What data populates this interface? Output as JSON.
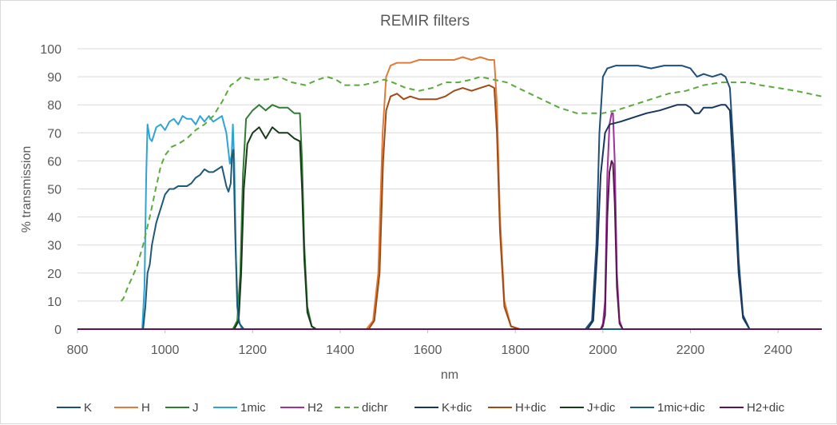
{
  "chart_data": {
    "type": "line",
    "title": "REMIR filters",
    "xlabel": "nm",
    "ylabel": "% transmission",
    "xlim": [
      800,
      2500
    ],
    "ylim": [
      0,
      100
    ],
    "xticks": [
      800,
      1000,
      1200,
      1400,
      1600,
      1800,
      2000,
      2200,
      2400
    ],
    "yticks": [
      0,
      10,
      20,
      30,
      40,
      50,
      60,
      70,
      80,
      90,
      100
    ],
    "grid": "horizontal",
    "legend": "bottom",
    "series": [
      {
        "name": "K",
        "color": "#1f4e79",
        "dash": false,
        "points": [
          [
            800,
            0
          ],
          [
            1960,
            0
          ],
          [
            1975,
            3
          ],
          [
            1985,
            30
          ],
          [
            1992,
            70
          ],
          [
            2000,
            90
          ],
          [
            2010,
            93
          ],
          [
            2030,
            94
          ],
          [
            2080,
            94
          ],
          [
            2110,
            93
          ],
          [
            2140,
            94
          ],
          [
            2180,
            94
          ],
          [
            2200,
            93
          ],
          [
            2215,
            90
          ],
          [
            2230,
            91
          ],
          [
            2250,
            90
          ],
          [
            2270,
            91
          ],
          [
            2280,
            90
          ],
          [
            2290,
            86
          ],
          [
            2300,
            60
          ],
          [
            2310,
            25
          ],
          [
            2320,
            5
          ],
          [
            2335,
            0
          ],
          [
            2500,
            0
          ]
        ]
      },
      {
        "name": "H",
        "color": "#e07b39",
        "dash": false,
        "points": [
          [
            800,
            0
          ],
          [
            1460,
            0
          ],
          [
            1475,
            3
          ],
          [
            1487,
            20
          ],
          [
            1497,
            70
          ],
          [
            1505,
            90
          ],
          [
            1515,
            94
          ],
          [
            1530,
            95
          ],
          [
            1560,
            95
          ],
          [
            1580,
            96
          ],
          [
            1600,
            96
          ],
          [
            1620,
            96
          ],
          [
            1640,
            96
          ],
          [
            1660,
            96
          ],
          [
            1680,
            97
          ],
          [
            1700,
            96
          ],
          [
            1720,
            97
          ],
          [
            1740,
            96
          ],
          [
            1752,
            96
          ],
          [
            1758,
            80
          ],
          [
            1765,
            40
          ],
          [
            1775,
            10
          ],
          [
            1790,
            1
          ],
          [
            1810,
            0
          ],
          [
            2500,
            0
          ]
        ]
      },
      {
        "name": "J",
        "color": "#2e7d32",
        "dash": false,
        "points": [
          [
            800,
            0
          ],
          [
            1155,
            0
          ],
          [
            1165,
            3
          ],
          [
            1172,
            20
          ],
          [
            1178,
            55
          ],
          [
            1185,
            75
          ],
          [
            1200,
            78
          ],
          [
            1215,
            80
          ],
          [
            1230,
            78
          ],
          [
            1245,
            80
          ],
          [
            1260,
            79
          ],
          [
            1280,
            79
          ],
          [
            1295,
            77
          ],
          [
            1308,
            77
          ],
          [
            1313,
            60
          ],
          [
            1318,
            30
          ],
          [
            1325,
            8
          ],
          [
            1335,
            1
          ],
          [
            1345,
            0
          ],
          [
            2500,
            0
          ]
        ]
      },
      {
        "name": "1mic",
        "color": "#2ea3d6",
        "dash": false,
        "points": [
          [
            800,
            0
          ],
          [
            948,
            0
          ],
          [
            953,
            15
          ],
          [
            957,
            55
          ],
          [
            960,
            73
          ],
          [
            965,
            68
          ],
          [
            970,
            67
          ],
          [
            980,
            72
          ],
          [
            990,
            73
          ],
          [
            1000,
            71
          ],
          [
            1010,
            74
          ],
          [
            1020,
            75
          ],
          [
            1030,
            73
          ],
          [
            1040,
            76
          ],
          [
            1050,
            75
          ],
          [
            1060,
            75
          ],
          [
            1070,
            73
          ],
          [
            1080,
            76
          ],
          [
            1090,
            74
          ],
          [
            1100,
            76
          ],
          [
            1110,
            74
          ],
          [
            1120,
            75
          ],
          [
            1130,
            76
          ],
          [
            1140,
            70
          ],
          [
            1148,
            59
          ],
          [
            1152,
            62
          ],
          [
            1155,
            73
          ],
          [
            1158,
            60
          ],
          [
            1162,
            25
          ],
          [
            1167,
            4
          ],
          [
            1175,
            0
          ],
          [
            2500,
            0
          ]
        ]
      },
      {
        "name": "H2",
        "color": "#a0309a",
        "dash": false,
        "points": [
          [
            800,
            0
          ],
          [
            1995,
            0
          ],
          [
            2000,
            2
          ],
          [
            2005,
            10
          ],
          [
            2010,
            55
          ],
          [
            2015,
            73
          ],
          [
            2020,
            77
          ],
          [
            2023,
            77
          ],
          [
            2027,
            60
          ],
          [
            2032,
            20
          ],
          [
            2038,
            3
          ],
          [
            2045,
            0
          ],
          [
            2500,
            0
          ]
        ]
      },
      {
        "name": "dichr",
        "color": "#5aaa3c",
        "dash": true,
        "points": [
          [
            900,
            10
          ],
          [
            905,
            11
          ],
          [
            915,
            15
          ],
          [
            935,
            22
          ],
          [
            950,
            30
          ],
          [
            965,
            40
          ],
          [
            980,
            51
          ],
          [
            990,
            58
          ],
          [
            1000,
            62
          ],
          [
            1015,
            65
          ],
          [
            1030,
            66
          ],
          [
            1050,
            68
          ],
          [
            1070,
            71
          ],
          [
            1090,
            73
          ],
          [
            1110,
            76
          ],
          [
            1130,
            81
          ],
          [
            1150,
            87
          ],
          [
            1160,
            88
          ],
          [
            1175,
            90
          ],
          [
            1200,
            89
          ],
          [
            1230,
            89
          ],
          [
            1260,
            90
          ],
          [
            1290,
            88
          ],
          [
            1320,
            87
          ],
          [
            1350,
            89
          ],
          [
            1370,
            90
          ],
          [
            1390,
            89
          ],
          [
            1410,
            87
          ],
          [
            1450,
            87
          ],
          [
            1480,
            88
          ],
          [
            1500,
            89
          ],
          [
            1520,
            88
          ],
          [
            1550,
            86
          ],
          [
            1580,
            85
          ],
          [
            1610,
            86
          ],
          [
            1640,
            88
          ],
          [
            1670,
            88
          ],
          [
            1700,
            89
          ],
          [
            1720,
            90
          ],
          [
            1750,
            89
          ],
          [
            1780,
            88
          ],
          [
            1820,
            85
          ],
          [
            1860,
            82
          ],
          [
            1900,
            79
          ],
          [
            1940,
            77
          ],
          [
            1980,
            77
          ],
          [
            2000,
            77
          ],
          [
            2030,
            78
          ],
          [
            2070,
            80
          ],
          [
            2110,
            82
          ],
          [
            2150,
            84
          ],
          [
            2190,
            85
          ],
          [
            2230,
            87
          ],
          [
            2270,
            88
          ],
          [
            2300,
            88
          ],
          [
            2330,
            88
          ],
          [
            2360,
            87
          ],
          [
            2400,
            86
          ],
          [
            2440,
            85
          ],
          [
            2470,
            84
          ],
          [
            2500,
            83
          ]
        ]
      },
      {
        "name": "K+dic",
        "color": "#17365d",
        "dash": false,
        "points": [
          [
            800,
            0
          ],
          [
            1965,
            0
          ],
          [
            1978,
            3
          ],
          [
            1988,
            30
          ],
          [
            1995,
            55
          ],
          [
            2005,
            70
          ],
          [
            2015,
            73
          ],
          [
            2040,
            74
          ],
          [
            2080,
            76
          ],
          [
            2100,
            77
          ],
          [
            2130,
            78
          ],
          [
            2150,
            79
          ],
          [
            2170,
            80
          ],
          [
            2190,
            80
          ],
          [
            2200,
            79
          ],
          [
            2210,
            77
          ],
          [
            2220,
            77
          ],
          [
            2230,
            79
          ],
          [
            2250,
            79
          ],
          [
            2270,
            80
          ],
          [
            2280,
            80
          ],
          [
            2290,
            78
          ],
          [
            2300,
            50
          ],
          [
            2310,
            20
          ],
          [
            2320,
            4
          ],
          [
            2335,
            0
          ],
          [
            2500,
            0
          ]
        ]
      },
      {
        "name": "H+dic",
        "color": "#a04a14",
        "dash": false,
        "points": [
          [
            800,
            0
          ],
          [
            1465,
            0
          ],
          [
            1478,
            3
          ],
          [
            1490,
            20
          ],
          [
            1498,
            60
          ],
          [
            1505,
            78
          ],
          [
            1515,
            83
          ],
          [
            1530,
            84
          ],
          [
            1545,
            82
          ],
          [
            1560,
            83
          ],
          [
            1580,
            82
          ],
          [
            1600,
            82
          ],
          [
            1620,
            82
          ],
          [
            1640,
            83
          ],
          [
            1660,
            85
          ],
          [
            1680,
            86
          ],
          [
            1700,
            85
          ],
          [
            1720,
            86
          ],
          [
            1740,
            87
          ],
          [
            1752,
            86
          ],
          [
            1758,
            70
          ],
          [
            1765,
            35
          ],
          [
            1775,
            8
          ],
          [
            1790,
            1
          ],
          [
            1810,
            0
          ],
          [
            2500,
            0
          ]
        ]
      },
      {
        "name": "J+dic",
        "color": "#173b1a",
        "dash": false,
        "points": [
          [
            800,
            0
          ],
          [
            1158,
            0
          ],
          [
            1168,
            3
          ],
          [
            1174,
            20
          ],
          [
            1180,
            50
          ],
          [
            1188,
            66
          ],
          [
            1200,
            70
          ],
          [
            1215,
            72
          ],
          [
            1230,
            68
          ],
          [
            1245,
            72
          ],
          [
            1260,
            70
          ],
          [
            1280,
            70
          ],
          [
            1295,
            68
          ],
          [
            1308,
            67
          ],
          [
            1313,
            50
          ],
          [
            1318,
            25
          ],
          [
            1325,
            6
          ],
          [
            1335,
            1
          ],
          [
            1345,
            0
          ],
          [
            2500,
            0
          ]
        ]
      },
      {
        "name": "1mic+dic",
        "color": "#1e5a78",
        "dash": false,
        "points": [
          [
            800,
            0
          ],
          [
            950,
            0
          ],
          [
            955,
            8
          ],
          [
            960,
            20
          ],
          [
            965,
            23
          ],
          [
            970,
            30
          ],
          [
            980,
            38
          ],
          [
            990,
            43
          ],
          [
            1000,
            48
          ],
          [
            1010,
            50
          ],
          [
            1020,
            50
          ],
          [
            1030,
            51
          ],
          [
            1040,
            51
          ],
          [
            1050,
            51
          ],
          [
            1060,
            52
          ],
          [
            1070,
            54
          ],
          [
            1080,
            55
          ],
          [
            1090,
            57
          ],
          [
            1100,
            56
          ],
          [
            1110,
            56
          ],
          [
            1120,
            57
          ],
          [
            1130,
            58
          ],
          [
            1140,
            51
          ],
          [
            1145,
            49
          ],
          [
            1150,
            52
          ],
          [
            1153,
            62
          ],
          [
            1156,
            64
          ],
          [
            1160,
            35
          ],
          [
            1165,
            8
          ],
          [
            1170,
            2
          ],
          [
            1180,
            0
          ],
          [
            2500,
            0
          ]
        ]
      },
      {
        "name": "H2+dic",
        "color": "#5a1552",
        "dash": false,
        "points": [
          [
            800,
            0
          ],
          [
            1995,
            0
          ],
          [
            2000,
            1
          ],
          [
            2005,
            5
          ],
          [
            2010,
            40
          ],
          [
            2015,
            56
          ],
          [
            2020,
            60
          ],
          [
            2023,
            59
          ],
          [
            2027,
            45
          ],
          [
            2032,
            15
          ],
          [
            2038,
            2
          ],
          [
            2045,
            0
          ],
          [
            2500,
            0
          ]
        ]
      }
    ]
  }
}
